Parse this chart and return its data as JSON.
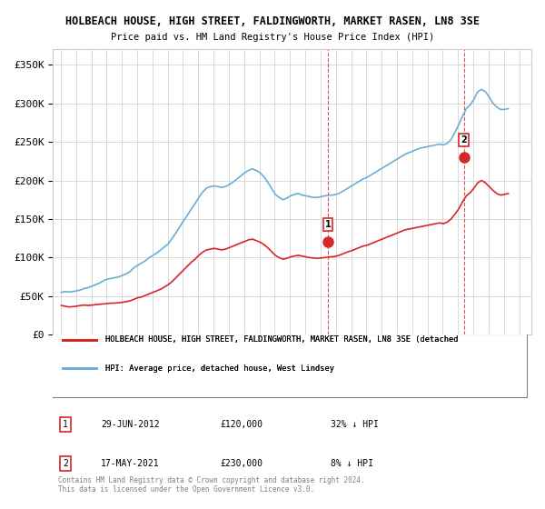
{
  "title": "HOLBEACH HOUSE, HIGH STREET, FALDINGWORTH, MARKET RASEN, LN8 3SE",
  "subtitle": "Price paid vs. HM Land Registry's House Price Index (HPI)",
  "ylabel": "",
  "xlim_start": 1994.5,
  "xlim_end": 2025.8,
  "ylim": [
    0,
    370000
  ],
  "yticks": [
    0,
    50000,
    100000,
    150000,
    200000,
    250000,
    300000,
    350000
  ],
  "ytick_labels": [
    "£0",
    "£50K",
    "£100K",
    "£150K",
    "£200K",
    "£250K",
    "£300K",
    "£350K"
  ],
  "hpi_color": "#6baed6",
  "price_color": "#d62728",
  "marker_color": "#d62728",
  "marker_fill": "#d62728",
  "sale1_x": 2012.49,
  "sale1_y": 120000,
  "sale1_label": "1",
  "sale2_x": 2021.38,
  "sale2_y": 230000,
  "sale2_label": "2",
  "legend_line1": "HOLBEACH HOUSE, HIGH STREET, FALDINGWORTH, MARKET RASEN, LN8 3SE (detached",
  "legend_line2": "HPI: Average price, detached house, West Lindsey",
  "table_row1": [
    "1",
    "29-JUN-2012",
    "£120,000",
    "32% ↓ HPI"
  ],
  "table_row2": [
    "2",
    "17-MAY-2021",
    "£230,000",
    "8% ↓ HPI"
  ],
  "footer": "Contains HM Land Registry data © Crown copyright and database right 2024.\nThis data is licensed under the Open Government Licence v3.0.",
  "background_color": "#ffffff",
  "grid_color": "#cccccc",
  "hpi_data": {
    "years": [
      1995.04,
      1995.29,
      1995.54,
      1995.79,
      1996.04,
      1996.29,
      1996.54,
      1996.79,
      1997.04,
      1997.29,
      1997.54,
      1997.79,
      1998.04,
      1998.29,
      1998.54,
      1998.79,
      1999.04,
      1999.29,
      1999.54,
      1999.79,
      2000.04,
      2000.29,
      2000.54,
      2000.79,
      2001.04,
      2001.29,
      2001.54,
      2001.79,
      2002.04,
      2002.29,
      2002.54,
      2002.79,
      2003.04,
      2003.29,
      2003.54,
      2003.79,
      2004.04,
      2004.29,
      2004.54,
      2004.79,
      2005.04,
      2005.29,
      2005.54,
      2005.79,
      2006.04,
      2006.29,
      2006.54,
      2006.79,
      2007.04,
      2007.29,
      2007.54,
      2007.79,
      2008.04,
      2008.29,
      2008.54,
      2008.79,
      2009.04,
      2009.29,
      2009.54,
      2009.79,
      2010.04,
      2010.29,
      2010.54,
      2010.79,
      2011.04,
      2011.29,
      2011.54,
      2011.79,
      2012.04,
      2012.29,
      2012.54,
      2012.79,
      2013.04,
      2013.29,
      2013.54,
      2013.79,
      2014.04,
      2014.29,
      2014.54,
      2014.79,
      2015.04,
      2015.29,
      2015.54,
      2015.79,
      2016.04,
      2016.29,
      2016.54,
      2016.79,
      2017.04,
      2017.29,
      2017.54,
      2017.79,
      2018.04,
      2018.29,
      2018.54,
      2018.79,
      2019.04,
      2019.29,
      2019.54,
      2019.79,
      2020.04,
      2020.29,
      2020.54,
      2020.79,
      2021.04,
      2021.29,
      2021.54,
      2021.79,
      2022.04,
      2022.29,
      2022.54,
      2022.79,
      2023.04,
      2023.29,
      2023.54,
      2023.79,
      2024.04,
      2024.29
    ],
    "values": [
      55000,
      56000,
      55500,
      56000,
      57000,
      58000,
      60000,
      61000,
      63000,
      65000,
      67000,
      70000,
      72000,
      73000,
      74000,
      75000,
      77000,
      79000,
      82000,
      87000,
      90000,
      93000,
      96000,
      100000,
      103000,
      106000,
      110000,
      114000,
      118000,
      125000,
      132000,
      140000,
      148000,
      155000,
      163000,
      170000,
      178000,
      185000,
      190000,
      192000,
      193000,
      192000,
      191000,
      192000,
      195000,
      198000,
      202000,
      206000,
      210000,
      213000,
      215000,
      213000,
      210000,
      205000,
      198000,
      190000,
      182000,
      178000,
      175000,
      177000,
      180000,
      182000,
      183000,
      181000,
      180000,
      179000,
      178000,
      178000,
      179000,
      180000,
      181000,
      181000,
      182000,
      184000,
      187000,
      190000,
      193000,
      196000,
      199000,
      202000,
      204000,
      207000,
      210000,
      213000,
      216000,
      219000,
      222000,
      225000,
      228000,
      231000,
      234000,
      236000,
      238000,
      240000,
      242000,
      243000,
      244000,
      245000,
      246000,
      247000,
      246000,
      248000,
      253000,
      262000,
      272000,
      283000,
      293000,
      298000,
      305000,
      315000,
      318000,
      315000,
      308000,
      300000,
      295000,
      292000,
      292000,
      293000
    ]
  },
  "price_data": {
    "years": [
      1995.04,
      1995.29,
      1995.54,
      1995.79,
      1996.04,
      1996.29,
      1996.54,
      1996.79,
      1997.04,
      1997.29,
      1997.54,
      1997.79,
      1998.04,
      1998.29,
      1998.54,
      1998.79,
      1999.04,
      1999.29,
      1999.54,
      1999.79,
      2000.04,
      2000.29,
      2000.54,
      2000.79,
      2001.04,
      2001.29,
      2001.54,
      2001.79,
      2002.04,
      2002.29,
      2002.54,
      2002.79,
      2003.04,
      2003.29,
      2003.54,
      2003.79,
      2004.04,
      2004.29,
      2004.54,
      2004.79,
      2005.04,
      2005.29,
      2005.54,
      2005.79,
      2006.04,
      2006.29,
      2006.54,
      2006.79,
      2007.04,
      2007.29,
      2007.54,
      2007.79,
      2008.04,
      2008.29,
      2008.54,
      2008.79,
      2009.04,
      2009.29,
      2009.54,
      2009.79,
      2010.04,
      2010.29,
      2010.54,
      2010.79,
      2011.04,
      2011.29,
      2011.54,
      2011.79,
      2012.04,
      2012.29,
      2012.54,
      2012.79,
      2013.04,
      2013.29,
      2013.54,
      2013.79,
      2014.04,
      2014.29,
      2014.54,
      2014.79,
      2015.04,
      2015.29,
      2015.54,
      2015.79,
      2016.04,
      2016.29,
      2016.54,
      2016.79,
      2017.04,
      2017.29,
      2017.54,
      2017.79,
      2018.04,
      2018.29,
      2018.54,
      2018.79,
      2019.04,
      2019.29,
      2019.54,
      2019.79,
      2020.04,
      2020.29,
      2020.54,
      2020.79,
      2021.04,
      2021.29,
      2021.54,
      2021.79,
      2022.04,
      2022.29,
      2022.54,
      2022.79,
      2023.04,
      2023.29,
      2023.54,
      2023.79,
      2024.04,
      2024.29
    ],
    "values": [
      38000,
      37000,
      36000,
      36500,
      37000,
      38000,
      38500,
      38000,
      38500,
      39000,
      39500,
      40000,
      40500,
      41000,
      41000,
      41500,
      42000,
      43000,
      44000,
      46000,
      48000,
      49000,
      51000,
      53000,
      55000,
      57000,
      59000,
      62000,
      65000,
      69000,
      74000,
      79000,
      84000,
      89000,
      94000,
      98000,
      103000,
      107000,
      110000,
      111000,
      112000,
      111000,
      110000,
      111000,
      113000,
      115000,
      117000,
      119000,
      121000,
      123000,
      124000,
      122000,
      120000,
      117000,
      113000,
      108000,
      103000,
      100000,
      98000,
      99000,
      101000,
      102000,
      103000,
      102000,
      101000,
      100000,
      99500,
      99000,
      99500,
      100000,
      101000,
      101000,
      102000,
      103500,
      105500,
      107500,
      109000,
      111000,
      113000,
      115000,
      116000,
      118000,
      120000,
      122000,
      124000,
      126000,
      128000,
      130000,
      132000,
      134000,
      136000,
      137000,
      138000,
      139000,
      140000,
      141000,
      142000,
      143000,
      144000,
      145000,
      144000,
      146000,
      150000,
      156000,
      163000,
      172000,
      180000,
      184000,
      190000,
      197000,
      200000,
      197000,
      192000,
      187000,
      183000,
      181000,
      182000,
      183000
    ]
  }
}
